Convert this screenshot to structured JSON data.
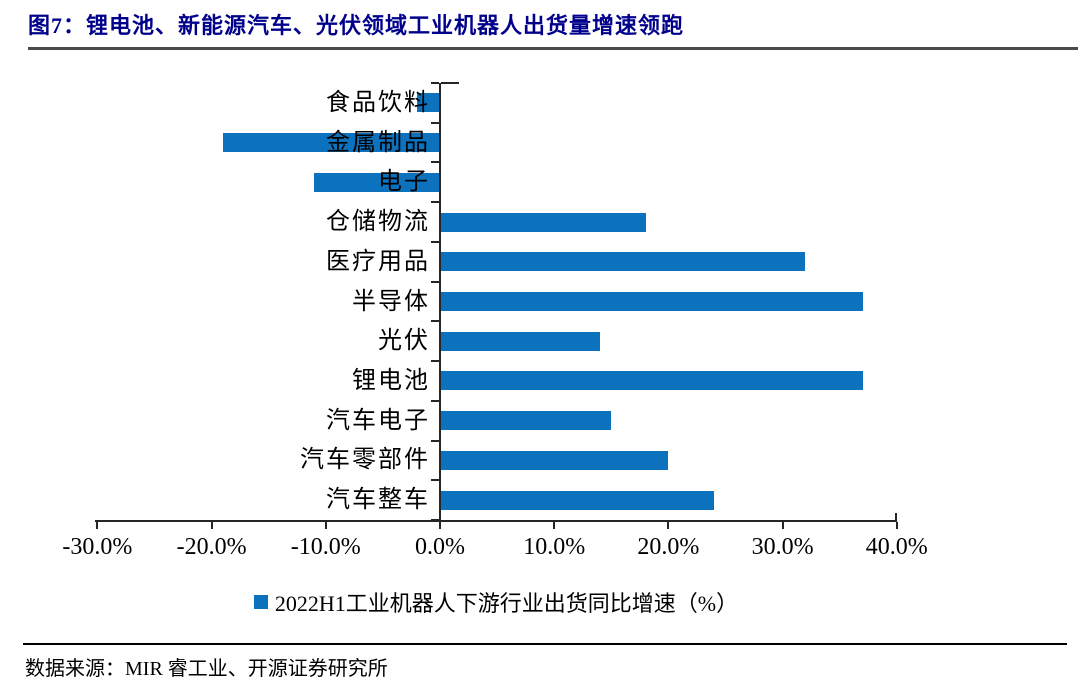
{
  "figure": {
    "title": "图7：锂电池、新能源汽车、光伏领域工业机器人出货量增速领跑",
    "source": "数据来源：MIR 睿工业、开源证券研究所"
  },
  "chart_data": {
    "type": "bar",
    "orientation": "horizontal",
    "title": "",
    "legend": "2022H1工业机器人下游行业出货同比增速（%）",
    "legend_position": "bottom",
    "categories": [
      "食品饮料",
      "金属制品",
      "电子",
      "仓储物流",
      "医疗用品",
      "半导体",
      "光伏",
      "锂电池",
      "汽车电子",
      "汽车零部件",
      "汽车整车"
    ],
    "values": [
      -2.0,
      -19.0,
      -11.0,
      18.0,
      32.0,
      37.0,
      14.0,
      37.0,
      15.0,
      20.0,
      24.0
    ],
    "unit": "%",
    "x_axis": {
      "min": -30,
      "max": 40,
      "tick_step": 10,
      "tick_labels": [
        "-30.0%",
        "-20.0%",
        "-10.0%",
        "0.0%",
        "10.0%",
        "20.0%",
        "30.0%",
        "40.0%"
      ]
    },
    "grid": false,
    "bar_color": "#0C72BE",
    "axis_color": "#262626"
  }
}
